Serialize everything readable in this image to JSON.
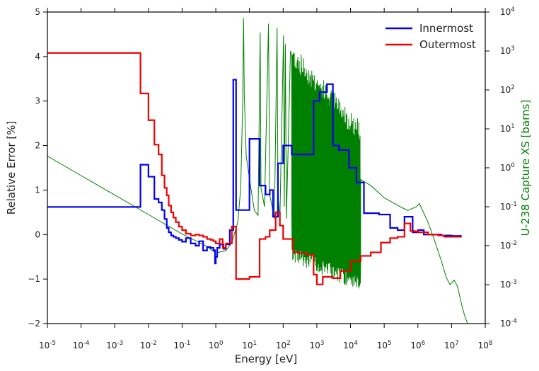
{
  "chart_data": {
    "type": "line",
    "title": "",
    "xlabel": "Energy [eV]",
    "ylabel": "Relative Error [%]",
    "y2label": "U-238 Capture XS [barns]",
    "x_scale": "log",
    "xlim": [
      1e-05,
      100000000.0
    ],
    "ylim": [
      -2,
      5
    ],
    "y2_scale": "log",
    "y2lim": [
      0.0001,
      10000.0
    ],
    "x_ticks": [
      {
        "b": "10",
        "e": "-5"
      },
      {
        "b": "10",
        "e": "-4"
      },
      {
        "b": "10",
        "e": "-3"
      },
      {
        "b": "10",
        "e": "-2"
      },
      {
        "b": "10",
        "e": "-1"
      },
      {
        "b": "10",
        "e": "0"
      },
      {
        "b": "10",
        "e": "1"
      },
      {
        "b": "10",
        "e": "2"
      },
      {
        "b": "10",
        "e": "3"
      },
      {
        "b": "10",
        "e": "4"
      },
      {
        "b": "10",
        "e": "5"
      },
      {
        "b": "10",
        "e": "6"
      },
      {
        "b": "10",
        "e": "7"
      },
      {
        "b": "10",
        "e": "8"
      }
    ],
    "y_ticks": [
      "−2",
      "−1",
      "0",
      "1",
      "2",
      "3",
      "4",
      "5"
    ],
    "y2_ticks": [
      {
        "b": "10",
        "e": "-4"
      },
      {
        "b": "10",
        "e": "-3"
      },
      {
        "b": "10",
        "e": "-2"
      },
      {
        "b": "10",
        "e": "-1"
      },
      {
        "b": "10",
        "e": "0"
      },
      {
        "b": "10",
        "e": "1"
      },
      {
        "b": "10",
        "e": "2"
      },
      {
        "b": "10",
        "e": "3"
      },
      {
        "b": "10",
        "e": "4"
      }
    ],
    "grid": false,
    "legend_position": "top-right",
    "series": [
      {
        "name": "Innermost",
        "color": "#0000ee",
        "axis": "left",
        "step_edges": [
          1e-05,
          0.0058,
          0.01,
          0.015,
          0.02,
          0.025,
          0.03,
          0.035,
          0.04,
          0.047,
          0.055,
          0.065,
          0.08,
          0.1,
          0.13,
          0.18,
          0.25,
          0.32,
          0.42,
          0.55,
          0.7,
          0.85,
          0.95,
          1.0,
          1.1,
          1.3,
          1.7,
          2.0,
          2.6,
          3.3,
          4.0,
          10.0,
          20.0,
          30.0,
          40.0,
          50.0,
          70.0,
          100.0,
          180.0,
          800.0,
          1200.0,
          2000.0,
          3000.0,
          4500.0,
          9000.0,
          15000.0,
          25000.0,
          70000.0,
          150000.0,
          250000.0,
          400000.0,
          700000.0,
          1000000.0,
          1500000.0,
          2500000.0,
          5000000.0,
          10000000.0,
          20000000.0
        ],
        "step_values": [
          0.62,
          1.57,
          1.3,
          0.8,
          0.72,
          0.55,
          0.35,
          0.15,
          0.05,
          -0.02,
          -0.05,
          -0.08,
          -0.12,
          -0.16,
          -0.08,
          -0.2,
          -0.25,
          -0.15,
          -0.36,
          -0.28,
          -0.3,
          -0.35,
          -0.65,
          -0.5,
          -0.3,
          -0.22,
          -0.32,
          -0.22,
          0.1,
          3.48,
          0.55,
          2.15,
          1.1,
          0.9,
          1.0,
          0.4,
          1.6,
          2.0,
          1.8,
          3.0,
          3.2,
          3.38,
          2.0,
          1.9,
          1.5,
          1.17,
          0.48,
          0.45,
          0.15,
          0.1,
          0.4,
          0.05,
          0.1,
          0.0,
          0.0,
          -0.02,
          -0.03
        ],
        "x_end": 20000000.0
      },
      {
        "name": "Outermost",
        "color": "#ee0000",
        "axis": "left",
        "step_edges": [
          1e-05,
          0.0058,
          0.01,
          0.015,
          0.02,
          0.025,
          0.03,
          0.035,
          0.04,
          0.047,
          0.055,
          0.065,
          0.08,
          0.1,
          0.13,
          0.18,
          0.25,
          0.32,
          0.42,
          0.55,
          0.7,
          0.85,
          1.0,
          1.3,
          1.6,
          2.0,
          3.0,
          4.0,
          10.0,
          20.0,
          30.0,
          40.0,
          60.0,
          80.0,
          100.0,
          200.0,
          300.0,
          500.0,
          800.0,
          1000.0,
          1500.0,
          3000.0,
          5000.0,
          10000.0,
          20000.0,
          40000.0,
          80000.0,
          150000.0,
          250000.0,
          400000.0,
          600000.0,
          800000.0,
          1000000.0,
          2000000.0,
          4000000.0,
          6000000.0,
          20000000.0
        ],
        "step_values": [
          4.08,
          3.17,
          2.57,
          2.02,
          1.8,
          1.33,
          1.05,
          0.88,
          0.65,
          0.5,
          0.38,
          0.28,
          0.18,
          0.1,
          0.02,
          -0.02,
          0.0,
          -0.02,
          -0.05,
          -0.1,
          -0.12,
          -0.15,
          -0.2,
          -0.1,
          -0.3,
          -0.2,
          0.18,
          -1.0,
          -0.95,
          -0.1,
          -0.05,
          0.1,
          0.5,
          0.2,
          -0.1,
          -0.4,
          -0.42,
          -0.45,
          -0.9,
          -1.12,
          -0.95,
          -0.98,
          -0.82,
          -0.6,
          -0.48,
          -0.4,
          -0.18,
          -0.08,
          -0.05,
          0.25,
          0.08,
          0.07,
          0.05,
          0.0,
          -0.02,
          -0.05
        ],
        "x_end": 25000000.0
      },
      {
        "name": "",
        "color": "#008000",
        "axis": "right",
        "points": [
          [
            1e-05,
            2.0
          ],
          [
            0.0001,
            0.631
          ],
          [
            0.001,
            0.2
          ],
          [
            0.01,
            0.0631
          ],
          [
            0.1,
            0.02
          ],
          [
            0.5,
            0.01
          ],
          [
            1.0,
            0.0065
          ],
          [
            2.0,
            0.0075
          ],
          [
            3.0,
            0.012
          ],
          [
            4.5,
            0.04
          ],
          [
            5.5,
            0.3
          ],
          [
            6.3,
            50.0
          ],
          [
            6.67,
            7000.0
          ],
          [
            7.0,
            80.0
          ],
          [
            8.0,
            2.0
          ],
          [
            11.0,
            0.3
          ],
          [
            14.0,
            0.08
          ],
          [
            18.0,
            0.06
          ],
          [
            20.8,
            3000.0
          ],
          [
            22.0,
            0.3
          ],
          [
            28.0,
            0.1
          ],
          [
            36.7,
            5000.0
          ],
          [
            40.0,
            0.2
          ],
          [
            55.0,
            0.05
          ],
          [
            66.0,
            4000.0
          ],
          [
            70.0,
            0.2
          ],
          [
            80.0,
            0.05
          ],
          [
            102.5,
            2500.0
          ],
          [
            108.0,
            0.1
          ],
          [
            116.0,
            1500.0
          ],
          [
            125.0,
            0.05
          ],
          [
            165.0,
            1000.0
          ],
          [
            180.0,
            0.08
          ],
          [
            190.0,
            800.0
          ],
          [
            200.0,
            0.03
          ],
          [
            210.0,
            900.0
          ],
          [
            240.0,
            0.05
          ],
          [
            273.0,
            700.0
          ],
          [
            290.0,
            0.02
          ],
          [
            347.0,
            500.0
          ],
          [
            370.0,
            0.02
          ],
          [
            397.0,
            300.0
          ],
          [
            420.0,
            0.01
          ],
          [
            460.0,
            200.0
          ],
          [
            480.0,
            0.008
          ],
          [
            520.0,
            180.0
          ],
          [
            560.0,
            0.01
          ],
          [
            620.0,
            150.0
          ],
          [
            700.0,
            0.008
          ],
          [
            800.0,
            120.0
          ],
          [
            900.0,
            0.006
          ],
          [
            1000.0,
            100.0
          ],
          [
            1200.0,
            0.005
          ],
          [
            1400.0,
            80.0
          ],
          [
            1600.0,
            0.004
          ],
          [
            1800.0,
            60.0
          ],
          [
            2000.0,
            0.004
          ],
          [
            2300.0,
            50.0
          ],
          [
            2600.0,
            0.003
          ],
          [
            3000.0,
            40.0
          ],
          [
            3300.0,
            0.003
          ],
          [
            3700.0,
            30.0
          ],
          [
            4100.0,
            0.003
          ],
          [
            4600.0,
            25.0
          ],
          [
            5200.0,
            0.002
          ],
          [
            5800.0,
            20.0
          ],
          [
            6500.0,
            0.002
          ],
          [
            7300.0,
            15.0
          ],
          [
            8200.0,
            0.0015
          ],
          [
            9200.0,
            12.0
          ],
          [
            10300.0,
            0.002
          ],
          [
            11500.0,
            10.0
          ],
          [
            13000.0,
            0.002
          ],
          [
            14500.0,
            7.0
          ],
          [
            16000.0,
            0.0025
          ],
          [
            18000.0,
            5.0
          ],
          [
            20000.0,
            0.003
          ],
          [
            20000.0,
            0.5
          ],
          [
            40000.0,
            0.35
          ],
          [
            100000.0,
            0.17
          ],
          [
            300000.0,
            0.1
          ],
          [
            500000.0,
            0.08
          ],
          [
            900000.0,
            0.1
          ],
          [
            1100000.0,
            0.12
          ],
          [
            1300000.0,
            0.09
          ],
          [
            2000000.0,
            0.04
          ],
          [
            3000000.0,
            0.015
          ],
          [
            5000000.0,
            0.004
          ],
          [
            7000000.0,
            0.0015
          ],
          [
            9000000.0,
            0.001
          ],
          [
            12000000.0,
            0.0013
          ],
          [
            15000000.0,
            0.0009
          ],
          [
            20000000.0,
            0.0003
          ],
          [
            25000000.0,
            0.00015
          ],
          [
            30000000.0,
            0.0001
          ]
        ],
        "dense_band": {
          "from": 180.0,
          "to": 20000.0,
          "count": 220
        }
      }
    ]
  }
}
